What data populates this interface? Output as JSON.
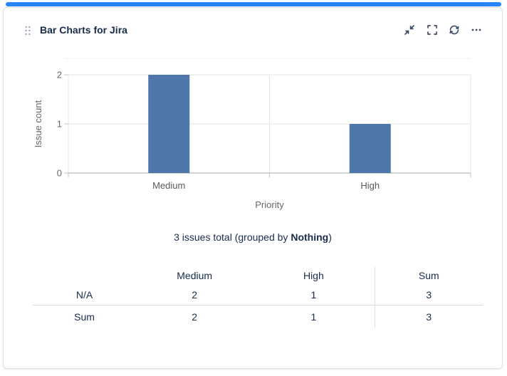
{
  "header": {
    "title": "Bar Charts for Jira",
    "actions": [
      {
        "label": "collapse",
        "icon": "collapse-icon"
      },
      {
        "label": "fullscreen",
        "icon": "fullscreen-icon"
      },
      {
        "label": "refresh",
        "icon": "refresh-icon"
      },
      {
        "label": "more",
        "icon": "more-options-icon"
      }
    ]
  },
  "chart_data": {
    "type": "bar",
    "categories": [
      "Medium",
      "High"
    ],
    "values": [
      2,
      1
    ],
    "xlabel": "Priority",
    "ylabel": "Issue count",
    "yticks": [
      0,
      1,
      2
    ],
    "ylim": [
      0,
      2.33
    ],
    "grid": true,
    "legend": false,
    "bar_color": "#4d78a9"
  },
  "summary": {
    "prefix": "3 issues total (grouped by ",
    "group_by": "Nothing",
    "suffix": ")"
  },
  "table": {
    "header": [
      "",
      "Medium",
      "High",
      "Sum"
    ],
    "rows": [
      [
        "N/A",
        "2",
        "1",
        "3"
      ],
      [
        "Sum",
        "2",
        "1",
        "3"
      ]
    ]
  },
  "colors": {
    "accent_bar": "#2684ff",
    "title_text": "#172b4d",
    "chart_text": "#666666",
    "bar": "#4d78a9",
    "gridline": "#e6e6e6",
    "axis_line": "#a8a8a8",
    "card_border": "#dcdfe4"
  }
}
